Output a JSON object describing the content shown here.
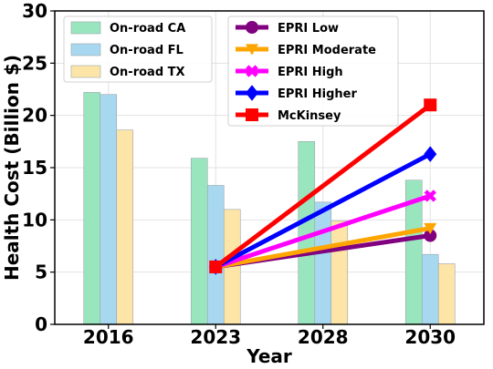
{
  "chart_data": {
    "type": "bar",
    "categories": [
      "2016",
      "2023",
      "2028",
      "2030"
    ],
    "xlabel": "Year",
    "ylabel": "Health Cost (Billion $)",
    "ylim": [
      0,
      30
    ],
    "yticks": [
      0,
      5,
      10,
      15,
      20,
      25,
      30
    ],
    "grid": true,
    "bar_series": [
      {
        "name": "On-road CA",
        "color": "#99e6be",
        "values": [
          22.2,
          15.9,
          17.5,
          13.8
        ]
      },
      {
        "name": "On-road FL",
        "color": "#a8d8f0",
        "values": [
          22.0,
          13.3,
          11.7,
          6.7
        ]
      },
      {
        "name": "On-road TX",
        "color": "#fde5a8",
        "values": [
          18.6,
          11.0,
          9.9,
          5.8
        ]
      }
    ],
    "line_series": [
      {
        "name": "EPRI Low",
        "color": "#800080",
        "marker": "circle",
        "x": [
          "2023",
          "2030"
        ],
        "values": [
          5.5,
          8.5
        ]
      },
      {
        "name": "EPRI Moderate",
        "color": "#ffa500",
        "marker": "triangle-down",
        "x": [
          "2023",
          "2030"
        ],
        "values": [
          5.5,
          9.2
        ]
      },
      {
        "name": "EPRI High",
        "color": "#ff00ff",
        "marker": "x",
        "x": [
          "2023",
          "2030"
        ],
        "values": [
          5.5,
          12.3
        ]
      },
      {
        "name": "EPRI Higher",
        "color": "#0000ff",
        "marker": "diamond",
        "x": [
          "2023",
          "2030"
        ],
        "values": [
          5.5,
          16.3
        ]
      },
      {
        "name": "McKinsey",
        "color": "#ff0000",
        "marker": "square",
        "x": [
          "2023",
          "2030"
        ],
        "values": [
          5.5,
          21.0
        ]
      }
    ],
    "legend_left_placement": "top-left",
    "legend_right_placement": "top-center"
  }
}
